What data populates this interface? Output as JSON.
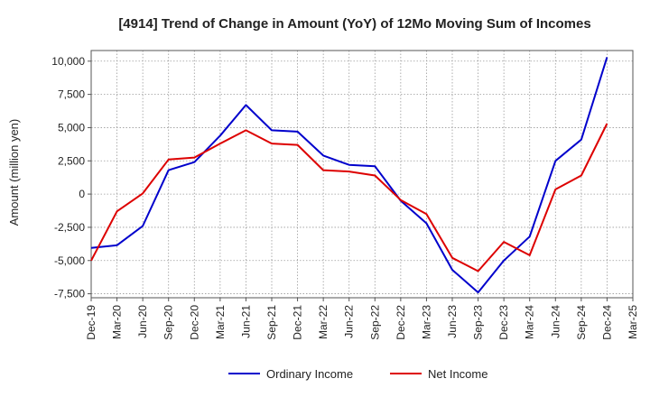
{
  "chart_data": {
    "type": "line",
    "title": "[4914]  Trend of Change in Amount (YoY) of 12Mo Moving Sum of Incomes",
    "xlabel": "",
    "ylabel": "Amount (million yen)",
    "categories": [
      "Dec-19",
      "Mar-20",
      "Jun-20",
      "Sep-20",
      "Dec-20",
      "Mar-21",
      "Jun-21",
      "Sep-21",
      "Dec-21",
      "Mar-22",
      "Jun-22",
      "Sep-22",
      "Dec-22",
      "Mar-23",
      "Jun-23",
      "Sep-23",
      "Dec-23",
      "Mar-24",
      "Jun-24",
      "Sep-24",
      "Dec-24",
      "Mar-25"
    ],
    "ylim": [
      -7800,
      10800
    ],
    "yticks": [
      10000,
      7500,
      5000,
      2500,
      0,
      -2500,
      -5000,
      -7500
    ],
    "ytick_labels": [
      "10,000",
      "7,500",
      "5,000",
      "2,500",
      "0",
      "-2,500",
      "-5,000",
      "-7,500"
    ],
    "grid": true,
    "legend_position": "bottom",
    "series": [
      {
        "name": "Ordinary Income",
        "color": "#0000cc",
        "values": [
          -4050,
          -3850,
          -2400,
          1800,
          2400,
          4400,
          6700,
          4800,
          4700,
          2900,
          2200,
          2100,
          -500,
          -2200,
          -5700,
          -7400,
          -5000,
          -3200,
          2500,
          4100,
          10300,
          null
        ]
      },
      {
        "name": "Net Income",
        "color": "#dd0000",
        "values": [
          -5000,
          -1300,
          50,
          2600,
          2750,
          3800,
          4800,
          3800,
          3700,
          1800,
          1700,
          1400,
          -450,
          -1500,
          -4800,
          -5800,
          -3600,
          -4600,
          350,
          1400,
          5300,
          null
        ]
      }
    ]
  }
}
